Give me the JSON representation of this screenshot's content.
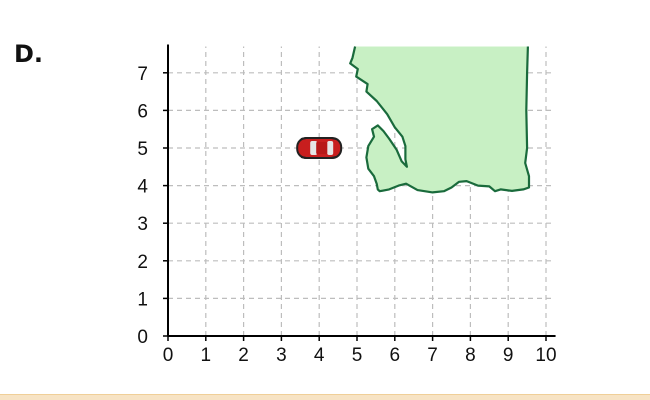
{
  "option": {
    "label": "D."
  },
  "colors": {
    "region_fill": "#c8f0c4",
    "region_stroke": "#1a6b3c",
    "grid": "#bdbdbd",
    "axis": "#000000",
    "car_body": "#c81e1e",
    "car_glass": "#e6e6e6"
  },
  "grid": {
    "x_ticks": [
      "0",
      "1",
      "2",
      "3",
      "4",
      "5",
      "6",
      "7",
      "8",
      "9",
      "10"
    ],
    "y_ticks": [
      "0",
      "1",
      "2",
      "3",
      "4",
      "5",
      "6",
      "7"
    ],
    "x_range": [
      0,
      10.2
    ],
    "y_range": [
      0,
      7.7
    ]
  },
  "car": {
    "icon": "car-icon",
    "x": 4.0,
    "y": 5.0
  },
  "region": {
    "shape": "lake-icon",
    "outline": [
      [
        4.95,
        7.7
      ],
      [
        4.88,
        7.4
      ],
      [
        4.82,
        7.25
      ],
      [
        5.02,
        7.1
      ],
      [
        4.98,
        6.9
      ],
      [
        5.28,
        6.7
      ],
      [
        5.25,
        6.5
      ],
      [
        5.52,
        6.25
      ],
      [
        5.8,
        5.9
      ],
      [
        6.0,
        5.55
      ],
      [
        6.2,
        5.3
      ],
      [
        6.28,
        5.05
      ],
      [
        6.28,
        4.7
      ],
      [
        6.32,
        4.5
      ],
      [
        6.18,
        4.65
      ],
      [
        6.05,
        4.95
      ],
      [
        5.85,
        5.25
      ],
      [
        5.7,
        5.45
      ],
      [
        5.55,
        5.6
      ],
      [
        5.4,
        5.5
      ],
      [
        5.45,
        5.3
      ],
      [
        5.3,
        5.05
      ],
      [
        5.25,
        4.75
      ],
      [
        5.3,
        4.45
      ],
      [
        5.45,
        4.25
      ],
      [
        5.52,
        4.05
      ],
      [
        5.55,
        3.9
      ],
      [
        5.6,
        3.85
      ],
      [
        5.85,
        3.9
      ],
      [
        6.1,
        4.0
      ],
      [
        6.3,
        4.05
      ],
      [
        6.6,
        3.88
      ],
      [
        7.0,
        3.82
      ],
      [
        7.3,
        3.85
      ],
      [
        7.5,
        3.95
      ],
      [
        7.7,
        4.1
      ],
      [
        7.9,
        4.12
      ],
      [
        8.2,
        4.0
      ],
      [
        8.5,
        3.98
      ],
      [
        8.65,
        3.85
      ],
      [
        8.8,
        3.9
      ],
      [
        9.1,
        3.86
      ],
      [
        9.4,
        3.9
      ],
      [
        9.55,
        3.95
      ],
      [
        9.55,
        4.25
      ],
      [
        9.45,
        4.6
      ],
      [
        9.5,
        5.0
      ],
      [
        9.48,
        6.0
      ],
      [
        9.5,
        7.0
      ],
      [
        9.52,
        7.7
      ]
    ]
  }
}
